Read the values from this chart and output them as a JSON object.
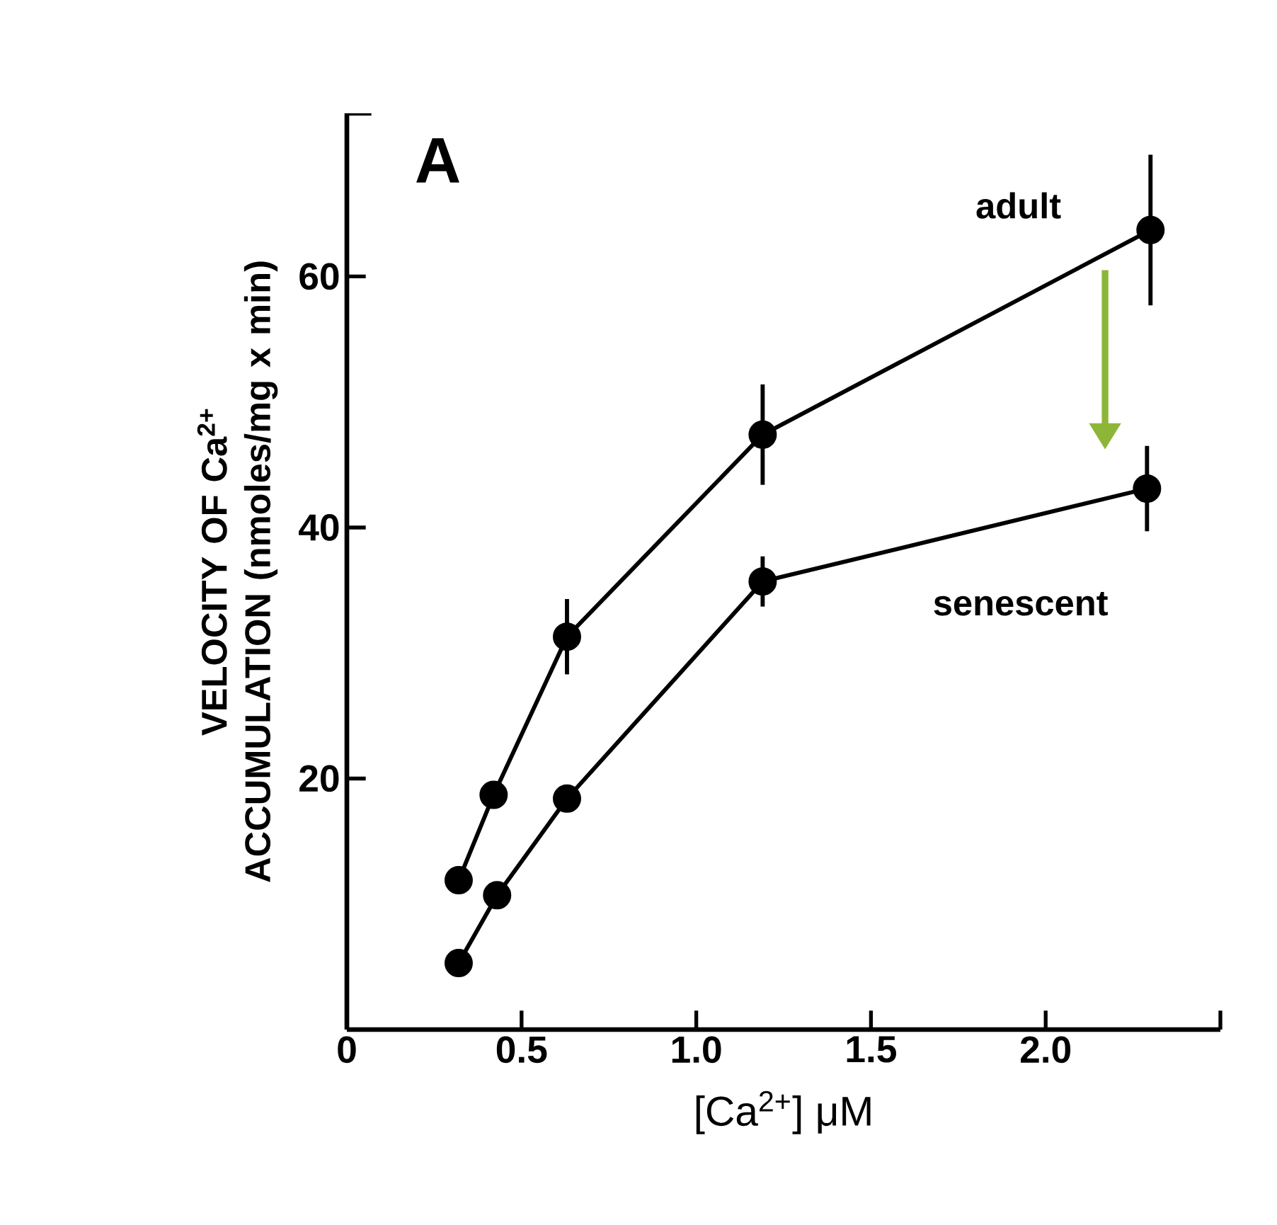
{
  "chart_data": {
    "type": "line",
    "xlabel": "[Ca$^{2+}$] μM",
    "ylabel": "VELOCITY OF Ca$^{2+}$ ACCUMULATION (nmoles/mg x min)",
    "annotations": [
      "A"
    ],
    "xlim": [
      0,
      2.5
    ],
    "xticks": [
      0,
      0.5,
      {
        "value": 1.0,
        "label": "1.0"
      },
      1.5,
      {
        "value": 2.0,
        "label": "2.0"
      },
      {
        "value": 2.5,
        "label": null
      }
    ],
    "ylim": [
      0,
      73
    ],
    "yticks": [
      {
        "value": 0,
        "label": null
      },
      20,
      40,
      60
    ],
    "grid": false,
    "legend": false,
    "marker": "circle",
    "line_style": "solid",
    "series": [
      {
        "name": "adult",
        "color": "#000000",
        "x": [
          0.32,
          0.42,
          0.63,
          1.19,
          2.3
        ],
        "values": [
          11.9,
          18.7,
          31.3,
          47.4,
          63.7
        ],
        "errors": [
          null,
          null,
          3,
          4,
          6
        ]
      },
      {
        "name": "senescent",
        "color": "#000000",
        "x": [
          0.32,
          0.43,
          0.63,
          1.19,
          2.29
        ],
        "values": [
          5.3,
          10.7,
          18.4,
          35.7,
          43.1
        ],
        "errors": [
          null,
          null,
          null,
          2,
          3.4
        ]
      }
    ]
  }
}
